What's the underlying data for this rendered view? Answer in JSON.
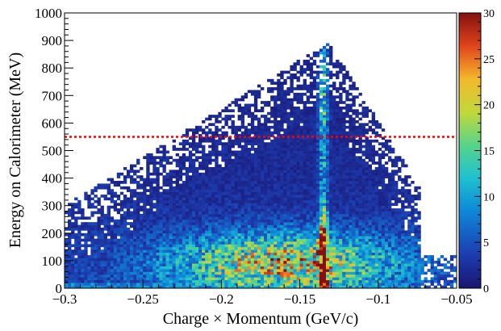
{
  "chart_data": {
    "type": "heatmap",
    "title": "",
    "xlabel": "Charge × Momentum (GeV/c)",
    "ylabel": "Energy on Calorimeter (MeV)",
    "xlim": [
      -0.3,
      -0.05
    ],
    "ylim": [
      0,
      1000
    ],
    "x_ticks": [
      -0.3,
      -0.25,
      -0.2,
      -0.15,
      -0.1,
      -0.05
    ],
    "x_tick_labels": [
      "−0.3",
      "−0.25",
      "−0.2",
      "−0.15",
      "−0.1",
      "−0.05"
    ],
    "y_ticks": [
      0,
      100,
      200,
      300,
      400,
      500,
      600,
      700,
      800,
      900,
      1000
    ],
    "y_tick_labels": [
      "0",
      "100",
      "200",
      "300",
      "400",
      "500",
      "600",
      "700",
      "800",
      "900",
      "1000"
    ],
    "z_range": [
      0,
      30
    ],
    "colorbar_ticks": [
      0,
      5,
      10,
      15,
      20,
      25,
      30
    ],
    "colorbar_tick_labels": [
      "0",
      "5",
      "10",
      "15",
      "20",
      "25",
      "30"
    ],
    "colormap": "rainbow (blue → cyan → green → yellow → red)",
    "grid": false,
    "cut_line": {
      "y": 550,
      "style": "dotted",
      "color": "#ff0000"
    },
    "density_features": [
      {
        "feature": "vertical band",
        "x": -0.135,
        "y_range": [
          0,
          900
        ],
        "peak_counts": 30,
        "peak_y": 80
      },
      {
        "feature": "broad low-energy cluster",
        "x_range": [
          -0.3,
          -0.08
        ],
        "y_range": [
          0,
          200
        ],
        "peak_counts": 20
      }
    ]
  }
}
